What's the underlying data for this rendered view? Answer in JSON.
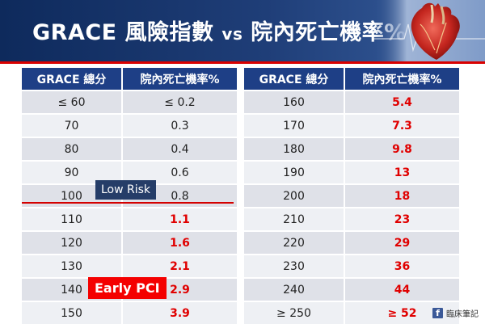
{
  "header": {
    "title_main": "GRACE 風險指數 ",
    "title_vs": "vs",
    "title_tail": " 院內死亡機率%"
  },
  "left_table": {
    "headers": [
      "GRACE 總分",
      "院內死亡機率%"
    ],
    "rows": [
      [
        "≤ 60",
        "≤ 0.2"
      ],
      [
        "70",
        "0.3"
      ],
      [
        "80",
        "0.4"
      ],
      [
        "90",
        "0.6"
      ],
      [
        "100",
        "0.8"
      ],
      [
        "110",
        "1.1"
      ],
      [
        "120",
        "1.6"
      ],
      [
        "130",
        "2.1"
      ],
      [
        "140",
        "2.9"
      ],
      [
        "150",
        "3.9"
      ]
    ]
  },
  "right_table": {
    "headers": [
      "GRACE 總分",
      "院內死亡機率%"
    ],
    "rows": [
      [
        "160",
        "5.4"
      ],
      [
        "170",
        "7.3"
      ],
      [
        "180",
        "9.8"
      ],
      [
        "190",
        "13"
      ],
      [
        "200",
        "18"
      ],
      [
        "210",
        "23"
      ],
      [
        "220",
        "29"
      ],
      [
        "230",
        "36"
      ],
      [
        "240",
        "44"
      ],
      [
        "≥ 250",
        "≥ 52"
      ]
    ]
  },
  "labels": {
    "low_risk": "Low Risk",
    "early_pci": "Early PCI"
  },
  "footer": {
    "icon": "facebook-icon",
    "text": "臨床筆記"
  },
  "colors": {
    "header_bg": "#1f3e78",
    "table_header": "#1e3f86",
    "red_value": "#e00000",
    "early_pci_bg": "#f40000",
    "low_risk_bg": "#253d68"
  }
}
